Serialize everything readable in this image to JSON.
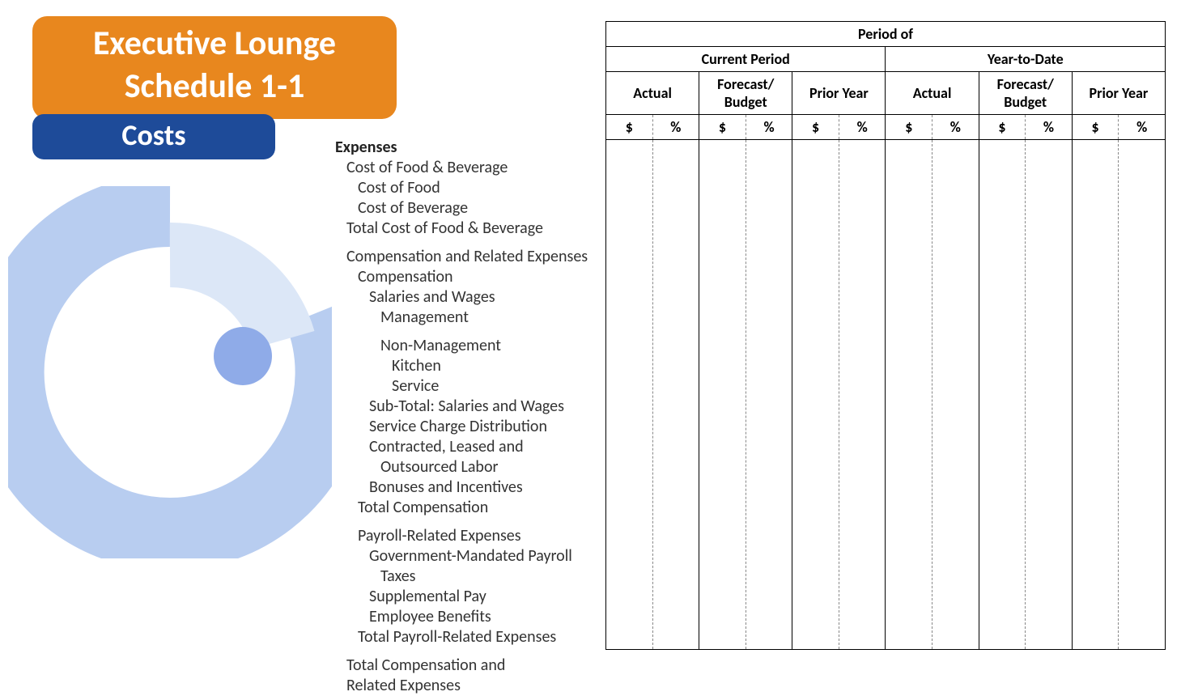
{
  "header": {
    "title_line1": "Executive Lounge",
    "title_line2": "Schedule 1-1",
    "subtitle": "Costs",
    "title_bg": "#e8871e",
    "subtitle_bg": "#1e4b99",
    "title_color": "#ffffff"
  },
  "decor": {
    "outer_arc_color": "#b8cdf0",
    "inner_arc_color": "#dce7f7",
    "dot_color": "#8fabe8",
    "background": "#ffffff"
  },
  "expenses": {
    "heading": "Expenses",
    "items": [
      {
        "label": "Cost of Food & Beverage",
        "indent": 1,
        "bold": false
      },
      {
        "label": "Cost of Food",
        "indent": 2,
        "bold": false
      },
      {
        "label": "Cost of Beverage",
        "indent": 2,
        "bold": false
      },
      {
        "label": "Total Cost of Food & Beverage",
        "indent": 1,
        "bold": false
      },
      {
        "label": "Compensation and Related Expenses",
        "indent": 1,
        "bold": false,
        "gap": true
      },
      {
        "label": "Compensation",
        "indent": 2,
        "bold": false
      },
      {
        "label": "Salaries and Wages",
        "indent": 3,
        "bold": false
      },
      {
        "label": "Management",
        "indent": 4,
        "bold": false
      },
      {
        "label": "Non-Management",
        "indent": 4,
        "bold": false,
        "gap": true
      },
      {
        "label": "Kitchen",
        "indent": 5,
        "bold": false
      },
      {
        "label": "Service",
        "indent": 5,
        "bold": false
      },
      {
        "label": "Sub-Total: Salaries and Wages",
        "indent": 3,
        "bold": false
      },
      {
        "label": "Service Charge Distribution",
        "indent": 3,
        "bold": false
      },
      {
        "label": "Contracted, Leased and",
        "indent": 3,
        "bold": false
      },
      {
        "label": "Outsourced Labor",
        "indent": 4,
        "bold": false
      },
      {
        "label": "Bonuses and Incentives",
        "indent": 3,
        "bold": false
      },
      {
        "label": "Total Compensation",
        "indent": 2,
        "bold": false
      },
      {
        "label": "Payroll-Related Expenses",
        "indent": 2,
        "bold": false,
        "gap": true
      },
      {
        "label": "Government-Mandated Payroll",
        "indent": 3,
        "bold": false
      },
      {
        "label": "Taxes",
        "indent": 4,
        "bold": false
      },
      {
        "label": "Supplemental Pay",
        "indent": 3,
        "bold": false
      },
      {
        "label": "Employee Benefits",
        "indent": 3,
        "bold": false
      },
      {
        "label": "Total Payroll-Related Expenses",
        "indent": 2,
        "bold": false
      },
      {
        "label": "Total Compensation and",
        "indent": 1,
        "bold": false,
        "gap": true
      },
      {
        "label": "Related Expenses",
        "indent": 1,
        "bold": false
      }
    ]
  },
  "table": {
    "super_header": "Period of",
    "group_headers": [
      "Current Period",
      "Year-to-Date"
    ],
    "sub_headers": [
      "Actual",
      "Forecast/\nBudget",
      "Prior Year",
      "Actual",
      "Forecast/\nBudget",
      "Prior Year"
    ],
    "unit_headers": [
      "$",
      "%"
    ],
    "border_color": "#000000",
    "dash_color": "#888888"
  }
}
